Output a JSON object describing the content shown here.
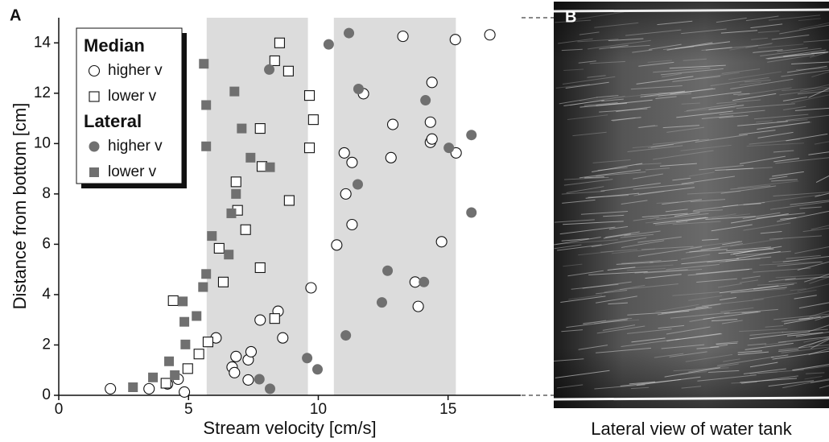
{
  "chart_data": {
    "type": "scatter",
    "panel_label": "A",
    "xlabel": "Stream velocity [cm/s]",
    "ylabel": "Distance from bottom [cm]",
    "xlim": [
      0,
      17.8
    ],
    "ylim": [
      0,
      15
    ],
    "xticks": [
      0,
      5,
      10,
      15
    ],
    "yticks": [
      0,
      2,
      4,
      6,
      8,
      10,
      12,
      14
    ],
    "bands": [
      [
        5.7,
        9.6
      ],
      [
        10.6,
        15.3
      ]
    ],
    "band_color": "#dcdcdc",
    "legend": "upper left",
    "grid": false,
    "series": [
      {
        "group": "Median",
        "name": "higher v",
        "marker": "circle",
        "filled": false,
        "color": "#111111",
        "x": [
          1.99,
          3.48,
          4.19,
          4.6,
          4.84,
          6.06,
          6.68,
          6.77,
          6.83,
          7.3,
          7.3,
          7.41,
          7.76,
          8.45,
          8.63,
          9.72,
          10.71,
          11.06,
          11.0,
          11.3,
          11.3,
          11.74,
          12.8,
          12.87,
          13.26,
          13.73,
          13.85,
          14.32,
          14.32,
          14.38,
          14.38,
          14.75,
          15.28,
          15.31,
          16.61
        ],
        "y": [
          0.26,
          0.26,
          0.45,
          0.64,
          0.13,
          2.28,
          1.12,
          0.9,
          1.54,
          0.61,
          1.41,
          1.73,
          2.99,
          3.34,
          2.28,
          4.27,
          5.97,
          8.0,
          9.63,
          6.78,
          9.25,
          11.98,
          9.44,
          10.76,
          14.26,
          4.5,
          3.53,
          10.05,
          10.85,
          12.43,
          10.18,
          6.1,
          14.13,
          9.63,
          14.32
        ]
      },
      {
        "group": "Median",
        "name": "lower v",
        "marker": "square",
        "filled": false,
        "color": "#111111",
        "x": [
          4.13,
          4.97,
          5.4,
          5.75,
          4.41,
          6.18,
          6.34,
          6.89,
          6.83,
          7.2,
          7.76,
          7.76,
          7.83,
          8.32,
          8.32,
          8.51,
          8.85,
          8.88,
          9.66,
          9.81,
          9.66
        ],
        "y": [
          0.48,
          1.06,
          1.64,
          2.12,
          3.76,
          5.84,
          4.5,
          7.35,
          8.48,
          6.58,
          5.07,
          10.6,
          9.09,
          3.05,
          13.29,
          14.0,
          12.88,
          7.74,
          11.91,
          10.95,
          9.83
        ]
      },
      {
        "group": "Lateral",
        "name": "higher v",
        "marker": "circle",
        "filled": true,
        "color": "#707070",
        "x": [
          8.14,
          7.73,
          9.57,
          9.97,
          11.06,
          12.45,
          12.67,
          14.07,
          11.52,
          8.11,
          10.4,
          11.18,
          11.55,
          14.13,
          15.03,
          15.9,
          15.9
        ],
        "y": [
          0.26,
          0.64,
          1.48,
          1.03,
          2.38,
          3.69,
          4.95,
          4.5,
          8.38,
          12.94,
          13.94,
          14.39,
          12.17,
          11.72,
          9.83,
          10.34,
          7.26
        ]
      },
      {
        "group": "Lateral",
        "name": "lower v",
        "marker": "square",
        "filled": true,
        "color": "#707070",
        "x": [
          2.86,
          3.63,
          4.25,
          4.47,
          4.88,
          4.84,
          4.78,
          5.31,
          5.56,
          5.68,
          5.9,
          6.55,
          6.65,
          6.83,
          5.59,
          5.68,
          5.68,
          6.77,
          7.05,
          7.39,
          8.14
        ],
        "y": [
          0.32,
          0.71,
          1.35,
          0.8,
          2.02,
          2.92,
          3.73,
          3.15,
          4.3,
          4.82,
          6.33,
          5.59,
          7.23,
          8.0,
          13.17,
          11.53,
          9.89,
          12.07,
          10.6,
          9.44,
          9.06
        ]
      }
    ]
  },
  "photo": {
    "panel_label": "B",
    "caption": "Lateral view of water tank"
  }
}
